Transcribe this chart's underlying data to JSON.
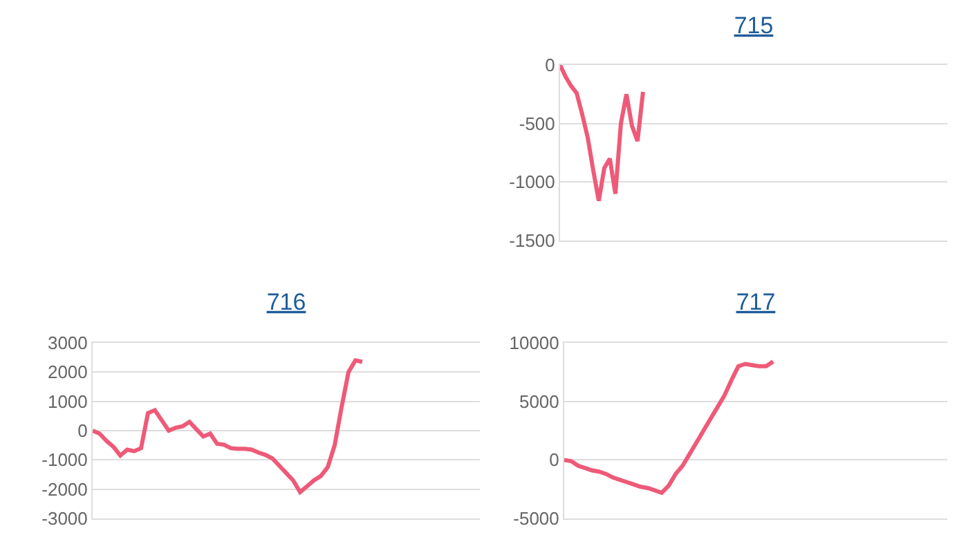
{
  "chart_data": [
    {
      "type": "line",
      "title": "715",
      "categories": [
        null,
        null,
        null,
        null,
        null,
        null,
        null,
        null,
        null,
        null,
        null,
        null,
        null,
        null,
        null,
        null,
        null,
        null,
        null,
        null,
        null,
        null,
        null,
        null,
        null,
        null,
        null,
        null,
        null,
        null,
        null,
        null,
        null,
        null,
        null,
        null,
        null,
        null,
        null,
        null,
        null,
        null,
        null,
        null,
        null,
        null,
        null,
        null,
        null,
        null,
        null,
        null,
        null,
        null,
        null,
        null,
        null,
        null,
        null,
        null,
        null,
        null,
        null,
        null,
        null,
        null,
        null,
        null,
        null,
        null,
        null
      ],
      "series": [
        {
          "color": "#ee5a78",
          "values": [
            0,
            -100,
            -180,
            -240,
            -420,
            -620,
            -900,
            -1160,
            -880,
            -800,
            -1100,
            -500,
            -250,
            -520,
            -650,
            -230,
            null,
            null,
            null,
            null,
            null,
            null,
            null,
            null,
            null,
            null,
            null,
            null,
            null,
            null,
            null,
            null,
            null,
            null,
            null,
            null,
            null,
            null,
            null,
            null,
            null,
            null,
            null,
            null,
            null,
            null,
            null,
            null,
            null,
            null,
            null,
            null,
            null,
            null,
            null,
            null,
            null,
            null,
            null,
            null,
            null,
            null,
            null,
            null,
            null,
            null,
            null,
            null,
            null,
            null,
            null
          ]
        }
      ],
      "ylim": [
        -1500,
        0
      ],
      "yticks": [
        -1500,
        -1000,
        -500,
        0
      ],
      "grid": "y",
      "tick_labels": "y"
    },
    {
      "type": "line",
      "title": "716",
      "categories": [
        null,
        null,
        null,
        null,
        null,
        null,
        null,
        null,
        null,
        null,
        null,
        null,
        null,
        null,
        null,
        null,
        null,
        null,
        null,
        null,
        null,
        null,
        null,
        null,
        null,
        null,
        null,
        null,
        null,
        null,
        null,
        null,
        null,
        null,
        null,
        null,
        null,
        null,
        null,
        null,
        null,
        null,
        null,
        null,
        null,
        null,
        null,
        null,
        null,
        null,
        null,
        null,
        null,
        null,
        null,
        null,
        null
      ],
      "series": [
        {
          "color": "#ee5a78",
          "values": [
            0,
            -100,
            -350,
            -550,
            -850,
            -650,
            -700,
            -600,
            600,
            700,
            350,
            0,
            100,
            150,
            300,
            50,
            -200,
            -100,
            -450,
            -480,
            -600,
            -620,
            -620,
            -650,
            -750,
            -830,
            -950,
            -1200,
            -1450,
            -1700,
            -2100,
            -1900,
            -1700,
            -1550,
            -1250,
            -500,
            800,
            2000,
            2400,
            2350,
            null,
            null,
            null,
            null,
            null,
            null,
            null,
            null,
            null,
            null,
            null,
            null,
            null,
            null,
            null,
            null,
            null
          ]
        }
      ],
      "ylim": [
        -3000,
        3000
      ],
      "yticks": [
        -3000,
        -2000,
        -1000,
        0,
        1000,
        2000,
        3000
      ],
      "grid": "y",
      "tick_labels": "y"
    },
    {
      "type": "line",
      "title": "717",
      "categories": [
        null,
        null,
        null,
        null,
        null,
        null,
        null,
        null,
        null,
        null,
        null,
        null,
        null,
        null,
        null,
        null,
        null,
        null,
        null,
        null,
        null,
        null,
        null,
        null,
        null,
        null,
        null,
        null,
        null,
        null,
        null,
        null,
        null,
        null,
        null,
        null,
        null,
        null,
        null,
        null,
        null,
        null,
        null,
        null,
        null,
        null,
        null,
        null,
        null,
        null,
        null,
        null,
        null,
        null,
        null,
        null
      ],
      "series": [
        {
          "color": "#ee5a78",
          "values": [
            0,
            -100,
            -500,
            -700,
            -900,
            -1000,
            -1200,
            -1500,
            -1700,
            -1900,
            -2100,
            -2300,
            -2400,
            -2600,
            -2800,
            -2200,
            -1200,
            -500,
            500,
            1500,
            2500,
            3500,
            4500,
            5500,
            6800,
            8000,
            8200,
            8100,
            8000,
            8000,
            8400,
            null,
            null,
            null,
            null,
            null,
            null,
            null,
            null,
            null,
            null,
            null,
            null,
            null,
            null,
            null,
            null,
            null,
            null,
            null,
            null,
            null,
            null,
            null,
            null,
            null
          ]
        }
      ],
      "ylim": [
        -5000,
        10000
      ],
      "yticks": [
        -5000,
        0,
        5000,
        10000
      ],
      "grid": "y",
      "tick_labels": "y"
    }
  ]
}
